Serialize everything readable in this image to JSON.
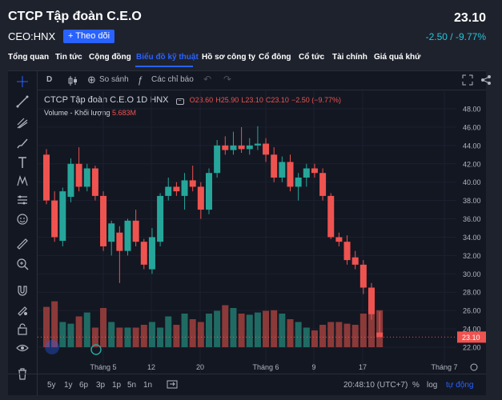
{
  "header": {
    "company": "CTCP Tập đoàn C.E.O",
    "price": "23.10",
    "ticker": "CEO:HNX",
    "follow_label": "+ Theo dõi",
    "change": "-2.50 / -9.77%"
  },
  "nav": {
    "items": [
      "Tổng quan",
      "Tin tức",
      "Cộng đồng",
      "Biểu đồ kỹ thuật",
      "Hồ sơ công ty",
      "Cổ đông",
      "Cổ tức",
      "Tài chính",
      "Giá quá khứ"
    ]
  },
  "toolbar": {
    "interval": "D",
    "compare": "So sánh",
    "indicators": "Các chỉ báo"
  },
  "legend": {
    "title": "CTCP Tập đoàn C.E.O  1D  HNX",
    "o": "O23.60",
    "h": "H25.90",
    "l": "L23.10",
    "c": "C23.10",
    "chg": "−2.50 (−9.77%)",
    "vol_label": "Volume - Khối lượng",
    "vol_value": "5.683M"
  },
  "bottom": {
    "ranges": [
      "5y",
      "1y",
      "6p",
      "3p",
      "1p",
      "5n",
      "1n"
    ],
    "time": "20:48:10 (UTC+7)",
    "pct": "%",
    "log": "log",
    "auto": "tự động"
  },
  "chart_data": {
    "type": "candlestick",
    "price_axis": [
      "48.00",
      "46.00",
      "44.00",
      "42.00",
      "40.00",
      "38.00",
      "36.00",
      "34.00",
      "32.00",
      "30.00",
      "28.00",
      "26.00",
      "24.00",
      "22.00"
    ],
    "ylim": [
      21,
      49
    ],
    "last_price_label": "23.10",
    "x_labels": [
      "Tháng 5",
      "12",
      "20",
      "Tháng 6",
      "9",
      "17",
      "Tháng 7"
    ],
    "colors": {
      "up": "#26a69a",
      "down": "#ef5350",
      "up_vol": "#1f6b63",
      "down_vol": "#8b3a39"
    },
    "candles": [
      {
        "o": 43.0,
        "h": 43.6,
        "l": 37.6,
        "c": 38.0
      },
      {
        "o": 38.0,
        "h": 39.0,
        "l": 33.5,
        "c": 34.0
      },
      {
        "o": 33.6,
        "h": 39.4,
        "l": 33.0,
        "c": 39.0
      },
      {
        "o": 38.4,
        "h": 42.6,
        "l": 37.8,
        "c": 42.0
      },
      {
        "o": 42.0,
        "h": 43.8,
        "l": 39.0,
        "c": 39.5
      },
      {
        "o": 39.5,
        "h": 42.0,
        "l": 39.0,
        "c": 41.5
      },
      {
        "o": 41.5,
        "h": 41.8,
        "l": 38.0,
        "c": 38.5
      },
      {
        "o": 38.5,
        "h": 39.0,
        "l": 32.5,
        "c": 33.0
      },
      {
        "o": 33.5,
        "h": 35.8,
        "l": 32.0,
        "c": 35.5
      },
      {
        "o": 34.5,
        "h": 35.2,
        "l": 29.0,
        "c": 32.5
      },
      {
        "o": 32.5,
        "h": 36.0,
        "l": 32.0,
        "c": 35.8
      },
      {
        "o": 35.8,
        "h": 37.0,
        "l": 33.0,
        "c": 33.5
      },
      {
        "o": 33.5,
        "h": 33.8,
        "l": 30.5,
        "c": 31.0
      },
      {
        "o": 30.5,
        "h": 35.0,
        "l": 30.0,
        "c": 34.0
      },
      {
        "o": 33.5,
        "h": 38.8,
        "l": 33.0,
        "c": 38.5
      },
      {
        "o": 38.5,
        "h": 40.5,
        "l": 38.0,
        "c": 39.5
      },
      {
        "o": 39.5,
        "h": 40.0,
        "l": 38.5,
        "c": 39.0
      },
      {
        "o": 38.5,
        "h": 41.0,
        "l": 37.0,
        "c": 40.2
      },
      {
        "o": 40.2,
        "h": 41.8,
        "l": 39.0,
        "c": 39.5
      },
      {
        "o": 39.5,
        "h": 40.0,
        "l": 36.0,
        "c": 37.0
      },
      {
        "o": 37.0,
        "h": 41.5,
        "l": 36.5,
        "c": 41.0
      },
      {
        "o": 41.0,
        "h": 44.6,
        "l": 40.5,
        "c": 44.0
      },
      {
        "o": 44.0,
        "h": 45.0,
        "l": 43.0,
        "c": 43.5
      },
      {
        "o": 43.5,
        "h": 45.5,
        "l": 43.0,
        "c": 44.0
      },
      {
        "o": 44.0,
        "h": 46.0,
        "l": 43.2,
        "c": 43.6
      },
      {
        "o": 43.6,
        "h": 44.8,
        "l": 43.0,
        "c": 44.0
      },
      {
        "o": 44.0,
        "h": 46.1,
        "l": 43.5,
        "c": 44.2
      },
      {
        "o": 44.2,
        "h": 44.8,
        "l": 42.2,
        "c": 43.0
      },
      {
        "o": 43.0,
        "h": 43.8,
        "l": 40.0,
        "c": 40.5
      },
      {
        "o": 40.5,
        "h": 42.8,
        "l": 40.0,
        "c": 42.2
      },
      {
        "o": 42.2,
        "h": 43.0,
        "l": 39.0,
        "c": 39.5
      },
      {
        "o": 39.5,
        "h": 41.0,
        "l": 38.0,
        "c": 40.5
      },
      {
        "o": 40.5,
        "h": 42.0,
        "l": 39.5,
        "c": 41.5
      },
      {
        "o": 41.5,
        "h": 42.0,
        "l": 40.5,
        "c": 41.0
      },
      {
        "o": 41.0,
        "h": 41.5,
        "l": 38.0,
        "c": 38.5
      },
      {
        "o": 38.5,
        "h": 38.8,
        "l": 33.8,
        "c": 34.0
      },
      {
        "o": 34.0,
        "h": 34.5,
        "l": 33.0,
        "c": 33.5
      },
      {
        "o": 33.5,
        "h": 34.2,
        "l": 31.0,
        "c": 31.5
      },
      {
        "o": 31.8,
        "h": 32.5,
        "l": 30.5,
        "c": 31.0
      },
      {
        "o": 31.0,
        "h": 31.5,
        "l": 27.8,
        "c": 28.5
      },
      {
        "o": 28.5,
        "h": 29.0,
        "l": 25.0,
        "c": 25.6
      },
      {
        "o": 23.6,
        "h": 25.9,
        "l": 23.1,
        "c": 23.1
      }
    ],
    "volumes": [
      0.72,
      0.82,
      0.45,
      0.42,
      0.55,
      0.62,
      0.35,
      0.7,
      0.45,
      0.35,
      0.35,
      0.35,
      0.4,
      0.45,
      0.35,
      0.55,
      0.4,
      0.6,
      0.5,
      0.45,
      0.6,
      0.65,
      0.75,
      0.7,
      0.6,
      0.58,
      0.62,
      0.65,
      0.66,
      0.6,
      0.5,
      0.45,
      0.35,
      0.3,
      0.4,
      0.45,
      0.45,
      0.42,
      0.4,
      0.6,
      0.75,
      0.66
    ]
  }
}
